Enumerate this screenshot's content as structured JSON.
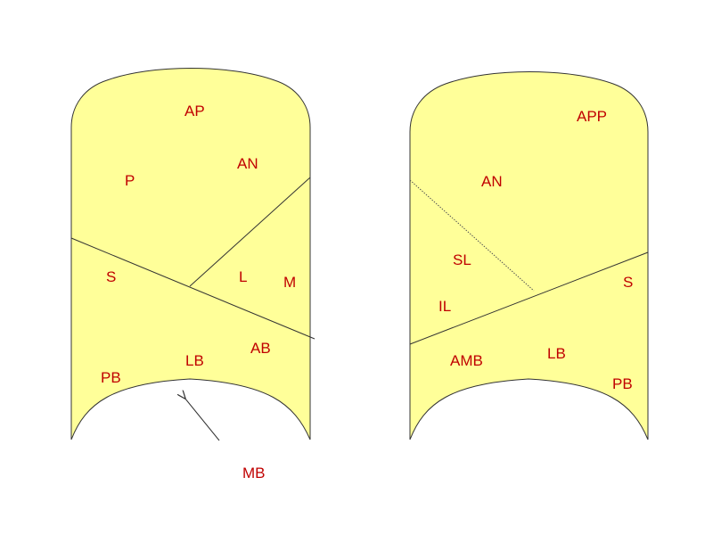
{
  "colors": {
    "fill": "#ffff99",
    "stroke": "#333333",
    "label": "#c00000"
  },
  "left_diagram": {
    "labels": {
      "ap": "AP",
      "an": "AN",
      "p": "P",
      "s": "S",
      "l": "L",
      "m": "M",
      "ab": "AB",
      "lb": "LB",
      "pb": "PB"
    },
    "pointer_label": "MB"
  },
  "right_diagram": {
    "labels": {
      "app": "APP",
      "an": "AN",
      "sl": "SL",
      "il": "IL",
      "s": "S",
      "amb": "AMB",
      "lb": "LB",
      "pb": "PB"
    }
  }
}
